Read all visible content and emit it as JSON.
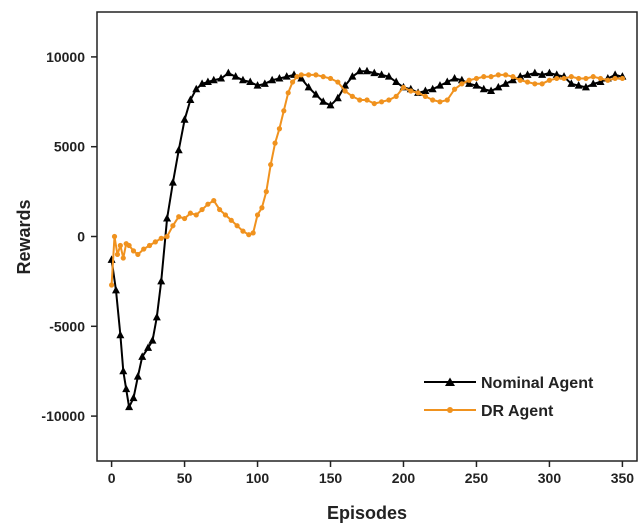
{
  "chart_data": {
    "type": "line",
    "xlabel": "Episodes",
    "ylabel": "Rewards",
    "xlim": [
      -10,
      360
    ],
    "ylim": [
      -12500,
      12500
    ],
    "xticks": [
      0,
      50,
      100,
      150,
      200,
      250,
      300,
      350
    ],
    "yticks": [
      -10000,
      -5000,
      0,
      5000,
      10000
    ],
    "grid": false,
    "legend_position": "bottom-right",
    "series": [
      {
        "name": "Nominal Agent",
        "color": "#000000",
        "marker": "triangle",
        "x": [
          0,
          3,
          6,
          8,
          10,
          12,
          15,
          18,
          21,
          25,
          28,
          31,
          34,
          38,
          42,
          46,
          50,
          54,
          58,
          62,
          66,
          70,
          75,
          80,
          85,
          90,
          95,
          100,
          105,
          110,
          115,
          120,
          125,
          130,
          135,
          140,
          145,
          150,
          155,
          160,
          165,
          170,
          175,
          180,
          185,
          190,
          195,
          200,
          205,
          210,
          215,
          220,
          225,
          230,
          235,
          240,
          245,
          250,
          255,
          260,
          265,
          270,
          275,
          280,
          285,
          290,
          295,
          300,
          305,
          310,
          315,
          320,
          325,
          330,
          335,
          340,
          345,
          350
        ],
        "values": [
          -1300,
          -3000,
          -5500,
          -7500,
          -8500,
          -9500,
          -9000,
          -7800,
          -6700,
          -6200,
          -5800,
          -4500,
          -2500,
          1000,
          3000,
          4800,
          6500,
          7600,
          8200,
          8500,
          8600,
          8700,
          8800,
          9100,
          8900,
          8700,
          8600,
          8400,
          8500,
          8700,
          8800,
          8900,
          9000,
          8800,
          8300,
          7900,
          7500,
          7300,
          7700,
          8400,
          8900,
          9200,
          9200,
          9100,
          9000,
          8900,
          8600,
          8300,
          8200,
          8000,
          8100,
          8200,
          8400,
          8600,
          8800,
          8700,
          8500,
          8400,
          8200,
          8100,
          8300,
          8500,
          8700,
          8900,
          9000,
          9100,
          9000,
          9100,
          9000,
          8900,
          8500,
          8400,
          8300,
          8500,
          8600,
          8800,
          9000,
          8900
        ]
      },
      {
        "name": "DR Agent",
        "color": "#f0921e",
        "marker": "circle",
        "x": [
          0,
          2,
          4,
          6,
          8,
          10,
          12,
          15,
          18,
          22,
          26,
          30,
          34,
          38,
          42,
          46,
          50,
          54,
          58,
          62,
          66,
          70,
          74,
          78,
          82,
          86,
          90,
          94,
          97,
          100,
          103,
          106,
          109,
          112,
          115,
          118,
          121,
          124,
          127,
          130,
          135,
          140,
          145,
          150,
          155,
          160,
          165,
          170,
          175,
          180,
          185,
          190,
          195,
          200,
          205,
          210,
          215,
          220,
          225,
          230,
          235,
          240,
          245,
          250,
          255,
          260,
          265,
          270,
          275,
          280,
          285,
          290,
          295,
          300,
          305,
          310,
          315,
          320,
          325,
          330,
          335,
          340,
          345,
          350
        ],
        "values": [
          -2700,
          0,
          -1000,
          -500,
          -1200,
          -400,
          -500,
          -800,
          -1000,
          -700,
          -500,
          -300,
          -100,
          0,
          600,
          1100,
          1000,
          1300,
          1200,
          1500,
          1800,
          2000,
          1500,
          1200,
          900,
          600,
          300,
          100,
          200,
          1200,
          1600,
          2500,
          4000,
          5200,
          6000,
          7000,
          8000,
          8600,
          8900,
          9000,
          9000,
          9000,
          8900,
          8800,
          8600,
          8100,
          7800,
          7600,
          7600,
          7400,
          7500,
          7600,
          7800,
          8300,
          8100,
          8000,
          7800,
          7600,
          7500,
          7600,
          8200,
          8500,
          8700,
          8800,
          8900,
          8900,
          9000,
          9000,
          8900,
          8700,
          8600,
          8500,
          8500,
          8700,
          8800,
          8800,
          8900,
          8800,
          8800,
          8900,
          8800,
          8700,
          8800,
          8800
        ]
      }
    ]
  }
}
